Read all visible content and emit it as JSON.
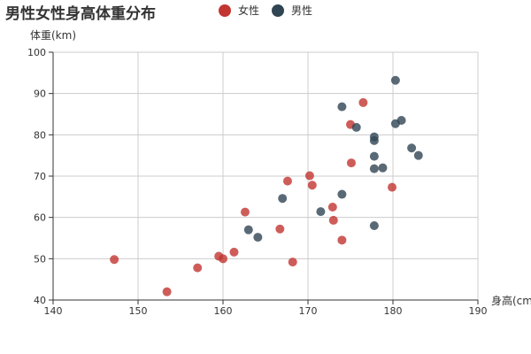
{
  "chart_data": {
    "type": "scatter",
    "title": "男性女性身高体重分布",
    "xlabel": "身高(cm",
    "ylabel": "体重(km)",
    "xlim": [
      140,
      190
    ],
    "ylim": [
      40,
      100
    ],
    "xticks": [
      "140",
      "150",
      "160",
      "170",
      "180",
      "190"
    ],
    "yticks": [
      "40",
      "50",
      "60",
      "70",
      "80",
      "90",
      "100"
    ],
    "grid": true,
    "legend_position": "top",
    "series": [
      {
        "name": "女性",
        "color": "#c23531",
        "points": [
          [
            147.2,
            49.8
          ],
          [
            153.4,
            42.0
          ],
          [
            157.0,
            47.8
          ],
          [
            159.5,
            50.6
          ],
          [
            160.0,
            50.0
          ],
          [
            161.3,
            51.6
          ],
          [
            162.6,
            61.3
          ],
          [
            166.7,
            57.2
          ],
          [
            167.6,
            68.8
          ],
          [
            168.2,
            49.2
          ],
          [
            170.2,
            70.1
          ],
          [
            170.5,
            67.8
          ],
          [
            172.9,
            62.5
          ],
          [
            173.0,
            59.3
          ],
          [
            174.0,
            54.5
          ],
          [
            175.0,
            82.5
          ],
          [
            175.1,
            73.2
          ],
          [
            176.5,
            87.8
          ],
          [
            179.9,
            67.3
          ]
        ]
      },
      {
        "name": "男性",
        "color": "#2f4554",
        "points": [
          [
            163.0,
            57.0
          ],
          [
            164.1,
            55.2
          ],
          [
            167.0,
            64.6
          ],
          [
            171.5,
            61.4
          ],
          [
            174.0,
            65.6
          ],
          [
            174.0,
            86.8
          ],
          [
            175.7,
            81.8
          ],
          [
            177.8,
            58.0
          ],
          [
            177.8,
            71.8
          ],
          [
            177.8,
            74.8
          ],
          [
            177.8,
            78.6
          ],
          [
            177.8,
            79.5
          ],
          [
            178.8,
            72.0
          ],
          [
            180.3,
            82.7
          ],
          [
            180.3,
            93.2
          ],
          [
            181.0,
            83.5
          ],
          [
            182.2,
            76.8
          ],
          [
            183.0,
            75.0
          ]
        ]
      }
    ]
  }
}
